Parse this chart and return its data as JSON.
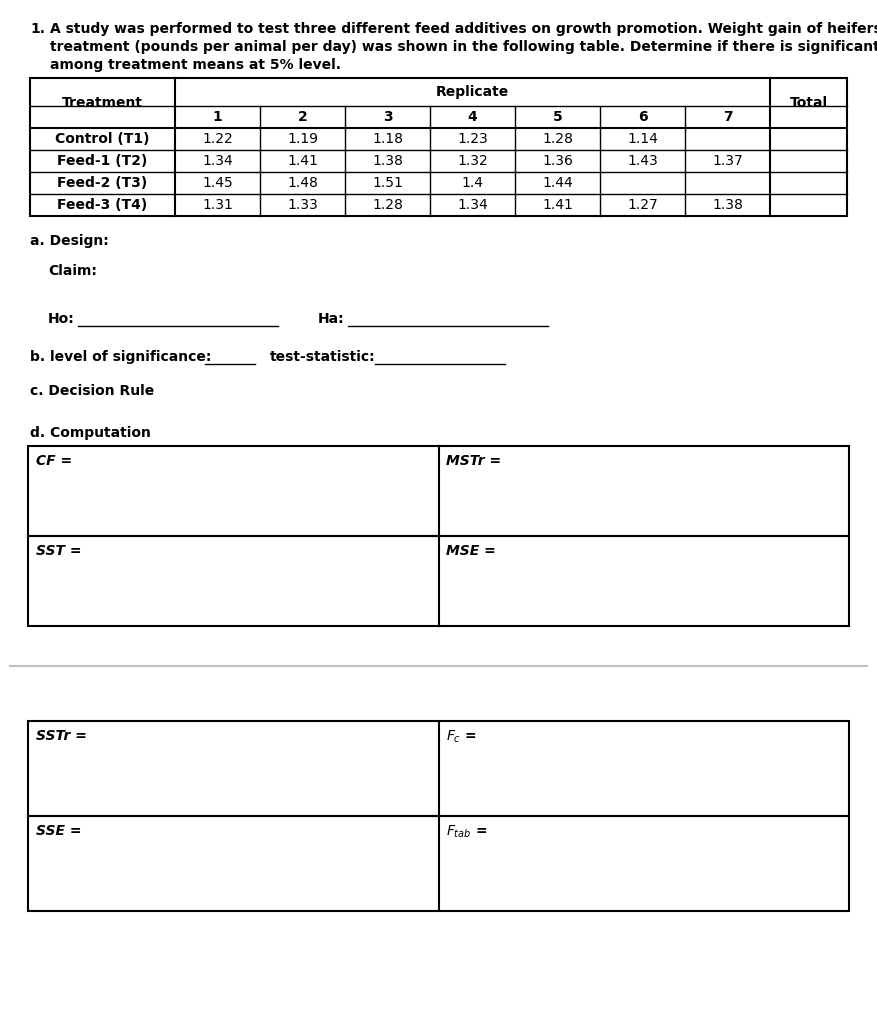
{
  "problem_number": "1.",
  "problem_text_line1": "A study was performed to test three different feed additives on growth promotion. Weight gain of heifers by",
  "problem_text_line2": "treatment (pounds per animal per day) was shown in the following table. Determine if there is significant difference",
  "problem_text_line3": "among treatment means at 5% level.",
  "table_headers_nums": [
    "1",
    "2",
    "3",
    "4",
    "5",
    "6",
    "7"
  ],
  "replicate_label": "Replicate",
  "treatment_label": "Treatment",
  "total_label": "Total",
  "table_data": [
    [
      "Control (T1)",
      "1.22",
      "1.19",
      "1.18",
      "1.23",
      "1.28",
      "1.14",
      "",
      ""
    ],
    [
      "Feed-1 (T2)",
      "1.34",
      "1.41",
      "1.38",
      "1.32",
      "1.36",
      "1.43",
      "1.37",
      ""
    ],
    [
      "Feed-2 (T3)",
      "1.45",
      "1.48",
      "1.51",
      "1.4",
      "1.44",
      "",
      "",
      ""
    ],
    [
      "Feed-3 (T4)",
      "1.31",
      "1.33",
      "1.28",
      "1.34",
      "1.41",
      "1.27",
      "1.38",
      ""
    ]
  ],
  "section_a_design": "a. Design:",
  "section_a_claim": "Claim:",
  "section_a_ho": "Ho:",
  "section_a_ha": "Ha:",
  "section_b_los": "b. level of significance:",
  "section_b_ts": "test-statistic:",
  "section_c": "c. Decision Rule",
  "section_d": "d. Computation",
  "box1_left": "CF =",
  "box1_right": "MSTr =",
  "box2_left": "SST =",
  "box2_right": "MSE =",
  "box3_left": "SSTr =",
  "box4_left": "SSE =",
  "bg_color": "#ffffff",
  "text_color": "#000000",
  "page_line_color": "#c0c0c0"
}
